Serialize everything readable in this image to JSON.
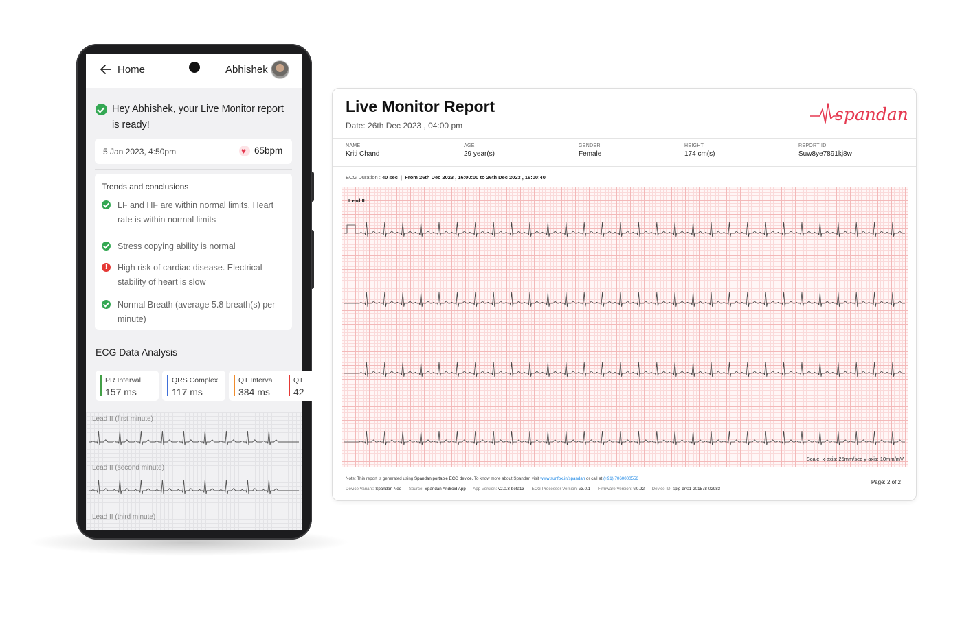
{
  "phone": {
    "back_label": "Home",
    "user_name": "Abhishek",
    "ready_message": "Hey Abhishek, your Live Monitor report is ready!",
    "session": {
      "datetime": "5 Jan 2023, 4:50pm",
      "bpm": "65bpm"
    },
    "trends": {
      "title": "Trends and conclusions",
      "items": [
        {
          "text": "LF and HF are within normal limits, Heart rate is within normal limits",
          "status": "ok"
        },
        {
          "text": "Stress copying ability is normal",
          "status": "ok"
        },
        {
          "text": "High risk of cardiac disease. Electrical stability of heart is slow",
          "status": "alert"
        },
        {
          "text": "Normal Breath (average 5.8 breath(s) per minute)",
          "status": "ok"
        }
      ]
    },
    "analysis_title": "ECG Data Analysis",
    "metrics": [
      {
        "label": "PR Interval",
        "value": "157 ms",
        "color": "#43a047"
      },
      {
        "label": "QRS Complex",
        "value": "117 ms",
        "color": "#3f6fd8"
      },
      {
        "label": "QT Interval",
        "value": "384 ms",
        "color": "#f08c2c"
      },
      {
        "label": "QT",
        "value": "42",
        "color": "#e53935"
      }
    ],
    "leads": [
      "Lead II (first minute)",
      "Lead II (second minute)",
      "Lead II (third minute)"
    ]
  },
  "report": {
    "title": "Live Monitor Report",
    "date": "Date: 26th Dec 2023 , 04:00 pm",
    "brand": "spandan",
    "patient": [
      {
        "key": "NAME",
        "value": "Kriti Chand"
      },
      {
        "key": "AGE",
        "value": "29 year(s)"
      },
      {
        "key": "GENDER",
        "value": "Female"
      },
      {
        "key": "HEIGHT",
        "value": "174 cm(s)"
      },
      {
        "key": "REPORT ID",
        "value": "Suw8ye7891kj8w"
      }
    ],
    "duration_label": "ECG Duration :",
    "duration_value": "40 sec",
    "duration_sep": "|",
    "range_from_label": "From",
    "range_from": "26th Dec 2023 , 16:00:00",
    "range_to_label": "to",
    "range_to": "26th Dec 2023 , 16:00:40",
    "lead_label": "Lead II",
    "scale": "Scale: x-axis: 25mm/sec   y-axis: 10mm/mV",
    "note_prefix": "Note: This report is generated using",
    "note_device": "Spandan portable ECG device.",
    "note_mid": "To know more about Spandan visit",
    "note_link": "www.sunfox.in/spandan",
    "note_or": "or call at",
    "note_phone": "(+91) 7060000556",
    "meta": [
      {
        "key": "Device Variant:",
        "value": "Spandan Neo"
      },
      {
        "key": "Source:",
        "value": "Spandan Android App"
      },
      {
        "key": "App Version:",
        "value": "v2.0.3-beta13"
      },
      {
        "key": "ECG Processor Version:",
        "value": "v3.0.1"
      },
      {
        "key": "Firmware Version:",
        "value": "v.0.92"
      },
      {
        "key": "Device ID:",
        "value": "splg-dn01-201578-02983"
      }
    ],
    "page": "Page:  2  of  2"
  },
  "colors": {
    "ok": "#34a853",
    "alert": "#e53935",
    "brand": "#e53950",
    "grid_major": "#f3b9b9",
    "grid_minor": "#fadada"
  }
}
